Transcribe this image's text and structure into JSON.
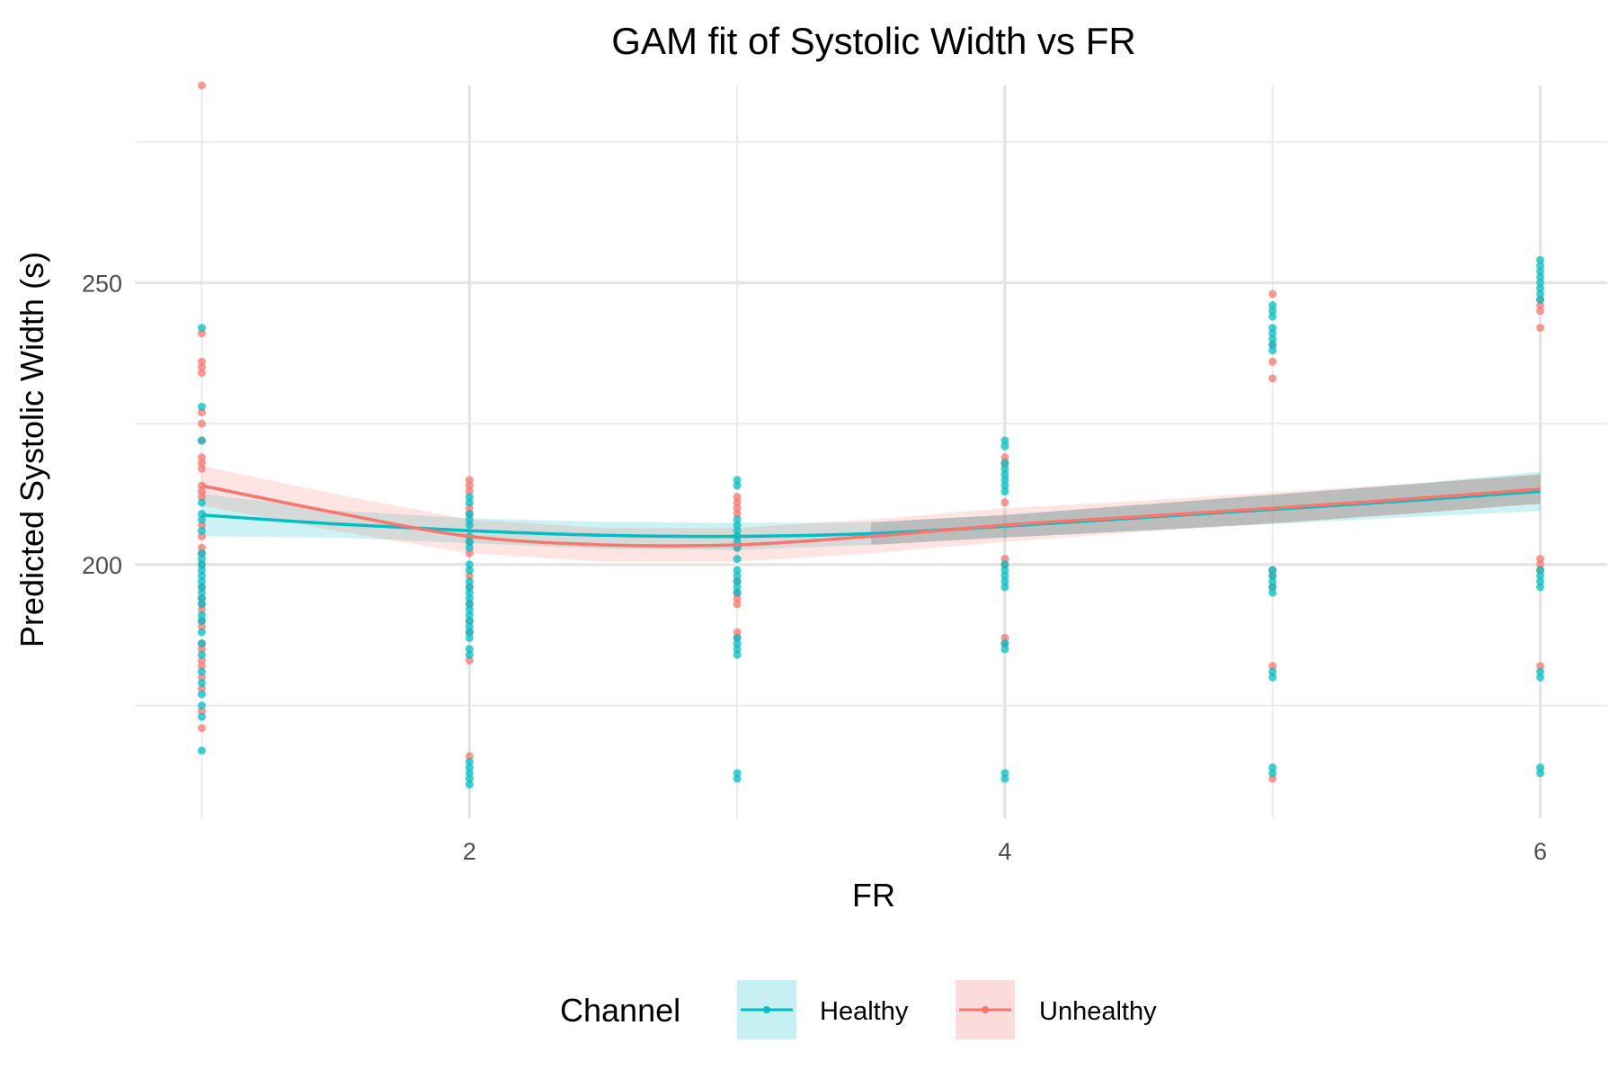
{
  "chart_data": {
    "type": "scatter",
    "title": "GAM fit of Systolic Width vs FR",
    "xlabel": "FR",
    "ylabel": "Predicted Systolic Width (s)",
    "xlim": [
      0.75,
      6.25
    ],
    "ylim": [
      155,
      285
    ],
    "x_ticks": [
      2,
      4,
      6
    ],
    "y_ticks": [
      200,
      250
    ],
    "grid": true,
    "legend": {
      "title": "Channel",
      "position": "bottom"
    },
    "series": [
      {
        "name": "Healthy",
        "color": "#00BFC4",
        "fill": "#C7F0F2",
        "points": [
          [
            1,
            242
          ],
          [
            1,
            228
          ],
          [
            1,
            222
          ],
          [
            1,
            211
          ],
          [
            1,
            209
          ],
          [
            1,
            208
          ],
          [
            1,
            206
          ],
          [
            1,
            202
          ],
          [
            1,
            201
          ],
          [
            1,
            200
          ],
          [
            1,
            199
          ],
          [
            1,
            198
          ],
          [
            1,
            197
          ],
          [
            1,
            196
          ],
          [
            1,
            195
          ],
          [
            1,
            194
          ],
          [
            1,
            193
          ],
          [
            1,
            191
          ],
          [
            1,
            190
          ],
          [
            1,
            188
          ],
          [
            1,
            186
          ],
          [
            1,
            184
          ],
          [
            1,
            181
          ],
          [
            1,
            179
          ],
          [
            1,
            177
          ],
          [
            1,
            175
          ],
          [
            1,
            173
          ],
          [
            1,
            167
          ],
          [
            2,
            212
          ],
          [
            2,
            211
          ],
          [
            2,
            209
          ],
          [
            2,
            208
          ],
          [
            2,
            207
          ],
          [
            2,
            205
          ],
          [
            2,
            204
          ],
          [
            2,
            203
          ],
          [
            2,
            200
          ],
          [
            2,
            199
          ],
          [
            2,
            197
          ],
          [
            2,
            196
          ],
          [
            2,
            195
          ],
          [
            2,
            194
          ],
          [
            2,
            193
          ],
          [
            2,
            192
          ],
          [
            2,
            191
          ],
          [
            2,
            190
          ],
          [
            2,
            189
          ],
          [
            2,
            188
          ],
          [
            2,
            187
          ],
          [
            2,
            185
          ],
          [
            2,
            184
          ],
          [
            2,
            165
          ],
          [
            2,
            164
          ],
          [
            2,
            163
          ],
          [
            2,
            162
          ],
          [
            2,
            161
          ],
          [
            3,
            215
          ],
          [
            3,
            214
          ],
          [
            3,
            208
          ],
          [
            3,
            207
          ],
          [
            3,
            206
          ],
          [
            3,
            205
          ],
          [
            3,
            204
          ],
          [
            3,
            203
          ],
          [
            3,
            201
          ],
          [
            3,
            199
          ],
          [
            3,
            198
          ],
          [
            3,
            197
          ],
          [
            3,
            196
          ],
          [
            3,
            195
          ],
          [
            3,
            187
          ],
          [
            3,
            186
          ],
          [
            3,
            185
          ],
          [
            3,
            184
          ],
          [
            3,
            163
          ],
          [
            3,
            162
          ],
          [
            4,
            222
          ],
          [
            4,
            221
          ],
          [
            4,
            218
          ],
          [
            4,
            217
          ],
          [
            4,
            216
          ],
          [
            4,
            215
          ],
          [
            4,
            214
          ],
          [
            4,
            213
          ],
          [
            4,
            200
          ],
          [
            4,
            199
          ],
          [
            4,
            198
          ],
          [
            4,
            197
          ],
          [
            4,
            196
          ],
          [
            4,
            186
          ],
          [
            4,
            185
          ],
          [
            4,
            163
          ],
          [
            4,
            162
          ],
          [
            5,
            246
          ],
          [
            5,
            245
          ],
          [
            5,
            244
          ],
          [
            5,
            242
          ],
          [
            5,
            241
          ],
          [
            5,
            240
          ],
          [
            5,
            239
          ],
          [
            5,
            238
          ],
          [
            5,
            199
          ],
          [
            5,
            198
          ],
          [
            5,
            197
          ],
          [
            5,
            196
          ],
          [
            5,
            195
          ],
          [
            5,
            181
          ],
          [
            5,
            180
          ],
          [
            5,
            164
          ],
          [
            5,
            163
          ],
          [
            6,
            254
          ],
          [
            6,
            253
          ],
          [
            6,
            252
          ],
          [
            6,
            251
          ],
          [
            6,
            250
          ],
          [
            6,
            249
          ],
          [
            6,
            248
          ],
          [
            6,
            247
          ],
          [
            6,
            199
          ],
          [
            6,
            198
          ],
          [
            6,
            197
          ],
          [
            6,
            196
          ],
          [
            6,
            181
          ],
          [
            6,
            180
          ],
          [
            6,
            164
          ],
          [
            6,
            163
          ]
        ],
        "fit": [
          [
            1,
            208.8
          ],
          [
            1.5,
            207.2
          ],
          [
            2,
            206.0
          ],
          [
            2.5,
            205.2
          ],
          [
            3,
            205.0
          ],
          [
            3.5,
            205.5
          ],
          [
            4,
            206.8
          ],
          [
            4.5,
            208.3
          ],
          [
            5,
            209.8
          ],
          [
            5.5,
            211.3
          ],
          [
            6,
            213.0
          ]
        ],
        "ci_lower": [
          [
            1,
            205.0
          ],
          [
            1.5,
            204.8
          ],
          [
            2,
            203.8
          ],
          [
            2.5,
            202.8
          ],
          [
            3,
            202.6
          ],
          [
            3.5,
            203.5
          ],
          [
            4,
            204.8
          ],
          [
            4.5,
            206.0
          ],
          [
            5,
            207.2
          ],
          [
            5.5,
            208.4
          ],
          [
            6,
            209.5
          ]
        ],
        "ci_upper": [
          [
            1,
            212.6
          ],
          [
            1.5,
            209.6
          ],
          [
            2,
            208.2
          ],
          [
            2.5,
            207.6
          ],
          [
            3,
            207.4
          ],
          [
            3.5,
            207.5
          ],
          [
            4,
            208.8
          ],
          [
            4.5,
            210.6
          ],
          [
            5,
            212.4
          ],
          [
            5.5,
            214.2
          ],
          [
            6,
            216.5
          ]
        ]
      },
      {
        "name": "Unhealthy",
        "color": "#F8766D",
        "fill": "#FCDCDA",
        "points": [
          [
            1,
            285
          ],
          [
            1,
            241
          ],
          [
            1,
            236
          ],
          [
            1,
            235
          ],
          [
            1,
            234
          ],
          [
            1,
            227
          ],
          [
            1,
            225
          ],
          [
            1,
            222
          ],
          [
            1,
            219
          ],
          [
            1,
            218
          ],
          [
            1,
            217
          ],
          [
            1,
            214
          ],
          [
            1,
            213
          ],
          [
            1,
            212
          ],
          [
            1,
            207
          ],
          [
            1,
            205
          ],
          [
            1,
            203
          ],
          [
            1,
            202
          ],
          [
            1,
            200
          ],
          [
            1,
            196
          ],
          [
            1,
            194
          ],
          [
            1,
            193
          ],
          [
            1,
            192
          ],
          [
            1,
            190
          ],
          [
            1,
            189
          ],
          [
            1,
            186
          ],
          [
            1,
            185
          ],
          [
            1,
            183
          ],
          [
            1,
            182
          ],
          [
            1,
            180
          ],
          [
            1,
            178
          ],
          [
            1,
            174
          ],
          [
            1,
            171
          ],
          [
            2,
            215
          ],
          [
            2,
            214
          ],
          [
            2,
            213
          ],
          [
            2,
            210
          ],
          [
            2,
            209
          ],
          [
            2,
            204
          ],
          [
            2,
            202
          ],
          [
            2,
            198
          ],
          [
            2,
            196
          ],
          [
            2,
            193
          ],
          [
            2,
            190
          ],
          [
            2,
            188
          ],
          [
            2,
            183
          ],
          [
            2,
            166
          ],
          [
            3,
            212
          ],
          [
            3,
            211
          ],
          [
            3,
            210
          ],
          [
            3,
            209
          ],
          [
            3,
            205
          ],
          [
            3,
            203
          ],
          [
            3,
            197
          ],
          [
            3,
            195
          ],
          [
            3,
            194
          ],
          [
            3,
            193
          ],
          [
            3,
            188
          ],
          [
            3,
            187
          ],
          [
            4,
            219
          ],
          [
            4,
            218
          ],
          [
            4,
            211
          ],
          [
            4,
            201
          ],
          [
            4,
            200
          ],
          [
            4,
            187
          ],
          [
            4,
            186
          ],
          [
            5,
            248
          ],
          [
            5,
            239
          ],
          [
            5,
            236
          ],
          [
            5,
            233
          ],
          [
            5,
            199
          ],
          [
            5,
            198
          ],
          [
            5,
            196
          ],
          [
            5,
            182
          ],
          [
            5,
            162
          ],
          [
            6,
            247
          ],
          [
            6,
            246
          ],
          [
            6,
            245
          ],
          [
            6,
            242
          ],
          [
            6,
            201
          ],
          [
            6,
            200
          ],
          [
            6,
            199
          ],
          [
            6,
            182
          ]
        ],
        "fit": [
          [
            1,
            214.0
          ],
          [
            1.5,
            209.2
          ],
          [
            2,
            205.0
          ],
          [
            2.5,
            203.5
          ],
          [
            3,
            203.5
          ],
          [
            3.5,
            205.0
          ],
          [
            4,
            207.0
          ],
          [
            4.5,
            208.5
          ],
          [
            5,
            210.0
          ],
          [
            5.5,
            211.6
          ],
          [
            6,
            213.4
          ]
        ],
        "ci_lower": [
          [
            1,
            210.5
          ],
          [
            1.5,
            206.0
          ],
          [
            2,
            202.0
          ],
          [
            2.5,
            200.5
          ],
          [
            3,
            200.5
          ],
          [
            3.5,
            202.0
          ],
          [
            4,
            204.0
          ],
          [
            4.5,
            205.8
          ],
          [
            5,
            207.3
          ],
          [
            5.5,
            209.0
          ],
          [
            6,
            210.8
          ]
        ],
        "ci_upper": [
          [
            1,
            217.5
          ],
          [
            1.5,
            212.5
          ],
          [
            2,
            208.0
          ],
          [
            2.5,
            206.5
          ],
          [
            3,
            206.5
          ],
          [
            3.5,
            208.0
          ],
          [
            4,
            210.0
          ],
          [
            4.5,
            211.3
          ],
          [
            5,
            212.8
          ],
          [
            5.5,
            214.3
          ],
          [
            6,
            216.0
          ]
        ]
      }
    ]
  }
}
